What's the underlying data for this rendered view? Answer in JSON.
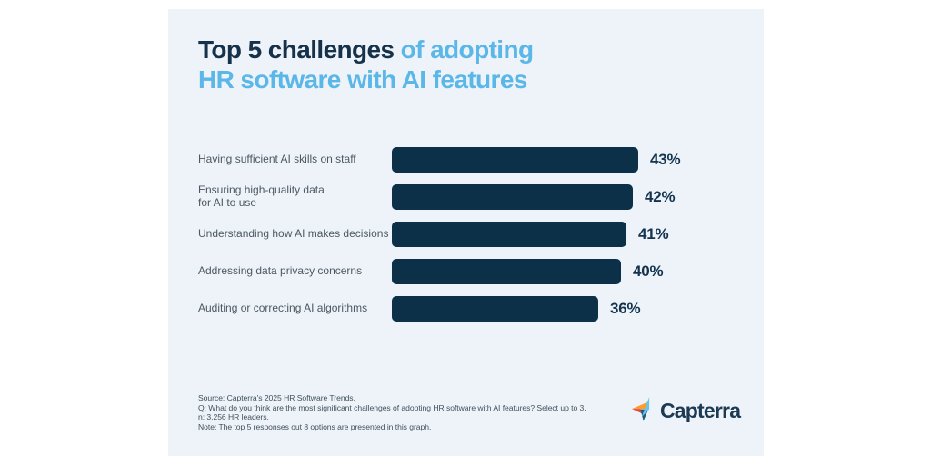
{
  "page": {
    "background_color": "#ffffff",
    "card_background_color": "#edf3f9"
  },
  "title": {
    "line1_dark": "Top 5 challenges",
    "line1_light": " of adopting",
    "line2_light": "HR software with AI features",
    "dark_color": "#16324a",
    "light_color": "#5bb7e8"
  },
  "chart_data": {
    "type": "bar",
    "orientation": "horizontal",
    "categories": [
      "Having sufficient AI skills on staff",
      "Ensuring high-quality data for AI to use",
      "Understanding how AI makes decisions",
      "Addressing data privacy concerns",
      "Auditing or correcting AI algorithms"
    ],
    "label_lines": [
      [
        "Having sufficient AI skills on staff"
      ],
      [
        "Ensuring high-quality data",
        "for AI to use"
      ],
      [
        "Understanding how AI makes decisions"
      ],
      [
        "Addressing data privacy concerns"
      ],
      [
        "Auditing or correcting AI algorithms"
      ]
    ],
    "values": [
      43,
      42,
      41,
      40,
      36
    ],
    "value_labels": [
      "43%",
      "42%",
      "41%",
      "40%",
      "36%"
    ],
    "unit": "%",
    "bar_color": "#0d3049",
    "value_label_color": "#14334e",
    "category_label_color": "#4d5862",
    "xlim": [
      0,
      45
    ],
    "grid": false,
    "legend": false
  },
  "footer": {
    "lines": [
      "Source: Capterra's 2025 HR Software Trends.",
      "Q: What do you think are the most significant challenges of adopting HR software with AI features? Select up to 3.",
      "n: 3,256 HR leaders.",
      "Note: The top 5 responses out 8 options are presented in this graph."
    ]
  },
  "logo": {
    "text": "Capterra",
    "text_color": "#1c3a52",
    "icon_colors": {
      "orange": "#ff9d28",
      "red": "#e04c46",
      "sky_blue": "#68c5ed",
      "deep_blue": "#1e5b82"
    }
  }
}
